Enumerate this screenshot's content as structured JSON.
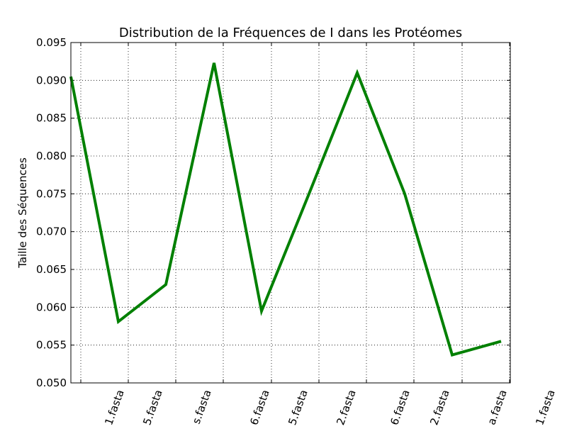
{
  "chart_data": {
    "type": "line",
    "title": "Distribution de la Fréquences de I dans les Protéomes",
    "xlabel": "",
    "ylabel": "Taille des Séquences",
    "ylim": [
      0.05,
      0.095
    ],
    "y_ticks": [
      "0.050",
      "0.055",
      "0.060",
      "0.065",
      "0.070",
      "0.075",
      "0.080",
      "0.085",
      "0.090",
      "0.095"
    ],
    "x_tick_labels": [
      "1.fasta",
      "5.fasta",
      "s.fasta",
      "6.fasta",
      "5.fasta",
      "2.fasta",
      "6.fasta",
      "2.fasta",
      "a.fasta",
      "1.fasta"
    ],
    "grid": true,
    "line_color": "#008000",
    "series": [
      {
        "values": [
          0.0905,
          0.0581,
          0.063,
          0.0923,
          0.0595,
          0.075,
          0.091,
          0.075,
          0.0537,
          0.0555
        ]
      }
    ]
  }
}
